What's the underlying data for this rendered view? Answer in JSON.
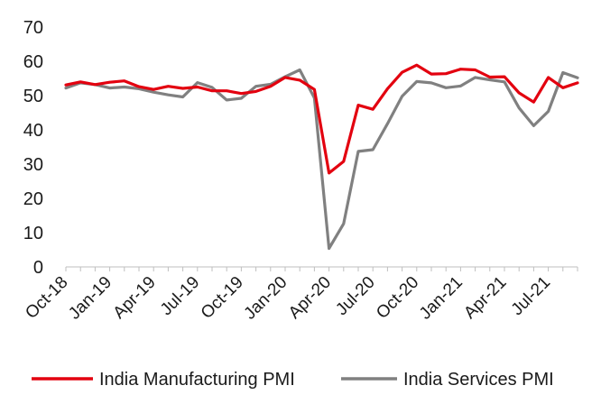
{
  "chart_data": {
    "type": "line",
    "title": "",
    "xlabel": "",
    "ylabel": "",
    "ylim": [
      0,
      70
    ],
    "yticks": [
      "0",
      "10",
      "20",
      "30",
      "40",
      "50",
      "60",
      "70"
    ],
    "x": [
      "Oct-18",
      "Nov-18",
      "Dec-18",
      "Jan-19",
      "Feb-19",
      "Mar-19",
      "Apr-19",
      "May-19",
      "Jun-19",
      "Jul-19",
      "Aug-19",
      "Sep-19",
      "Oct-19",
      "Nov-19",
      "Dec-19",
      "Jan-20",
      "Feb-20",
      "Mar-20",
      "Apr-20",
      "May-20",
      "Jun-20",
      "Jul-20",
      "Aug-20",
      "Sep-20",
      "Oct-20",
      "Nov-20",
      "Dec-20",
      "Jan-21",
      "Feb-21",
      "Mar-21",
      "Apr-21",
      "May-21",
      "Jun-21",
      "Jul-21",
      "Aug-21",
      "Sep-21"
    ],
    "xtick_labels": [
      "Oct-18",
      "Jan-19",
      "Apr-19",
      "Jul-19",
      "Oct-19",
      "Jan-20",
      "Apr-20",
      "Jul-20",
      "Oct-20",
      "Jan-21",
      "Apr-21",
      "Jul-21"
    ],
    "grid": false,
    "legend_position": "bottom",
    "series": [
      {
        "name": "India Manufacturing PMI",
        "color": "#e3000f",
        "values": [
          53.1,
          54.0,
          53.2,
          53.9,
          54.3,
          52.6,
          51.8,
          52.7,
          52.1,
          52.5,
          51.4,
          51.4,
          50.6,
          51.2,
          52.7,
          55.3,
          54.5,
          51.8,
          27.4,
          30.8,
          47.2,
          46.0,
          52.0,
          56.8,
          58.9,
          56.3,
          56.4,
          57.7,
          57.5,
          55.4,
          55.5,
          50.8,
          48.1,
          55.3,
          52.3,
          53.7
        ]
      },
      {
        "name": "India Services PMI",
        "color": "#808080",
        "values": [
          52.2,
          53.7,
          53.2,
          52.2,
          52.5,
          52.0,
          51.0,
          50.2,
          49.6,
          53.8,
          52.4,
          48.7,
          49.2,
          52.7,
          53.3,
          55.5,
          57.5,
          49.3,
          5.4,
          12.6,
          33.7,
          34.2,
          41.8,
          49.8,
          54.1,
          53.7,
          52.3,
          52.8,
          55.3,
          54.6,
          54.0,
          46.4,
          41.2,
          45.4,
          56.7,
          55.2
        ]
      }
    ]
  }
}
